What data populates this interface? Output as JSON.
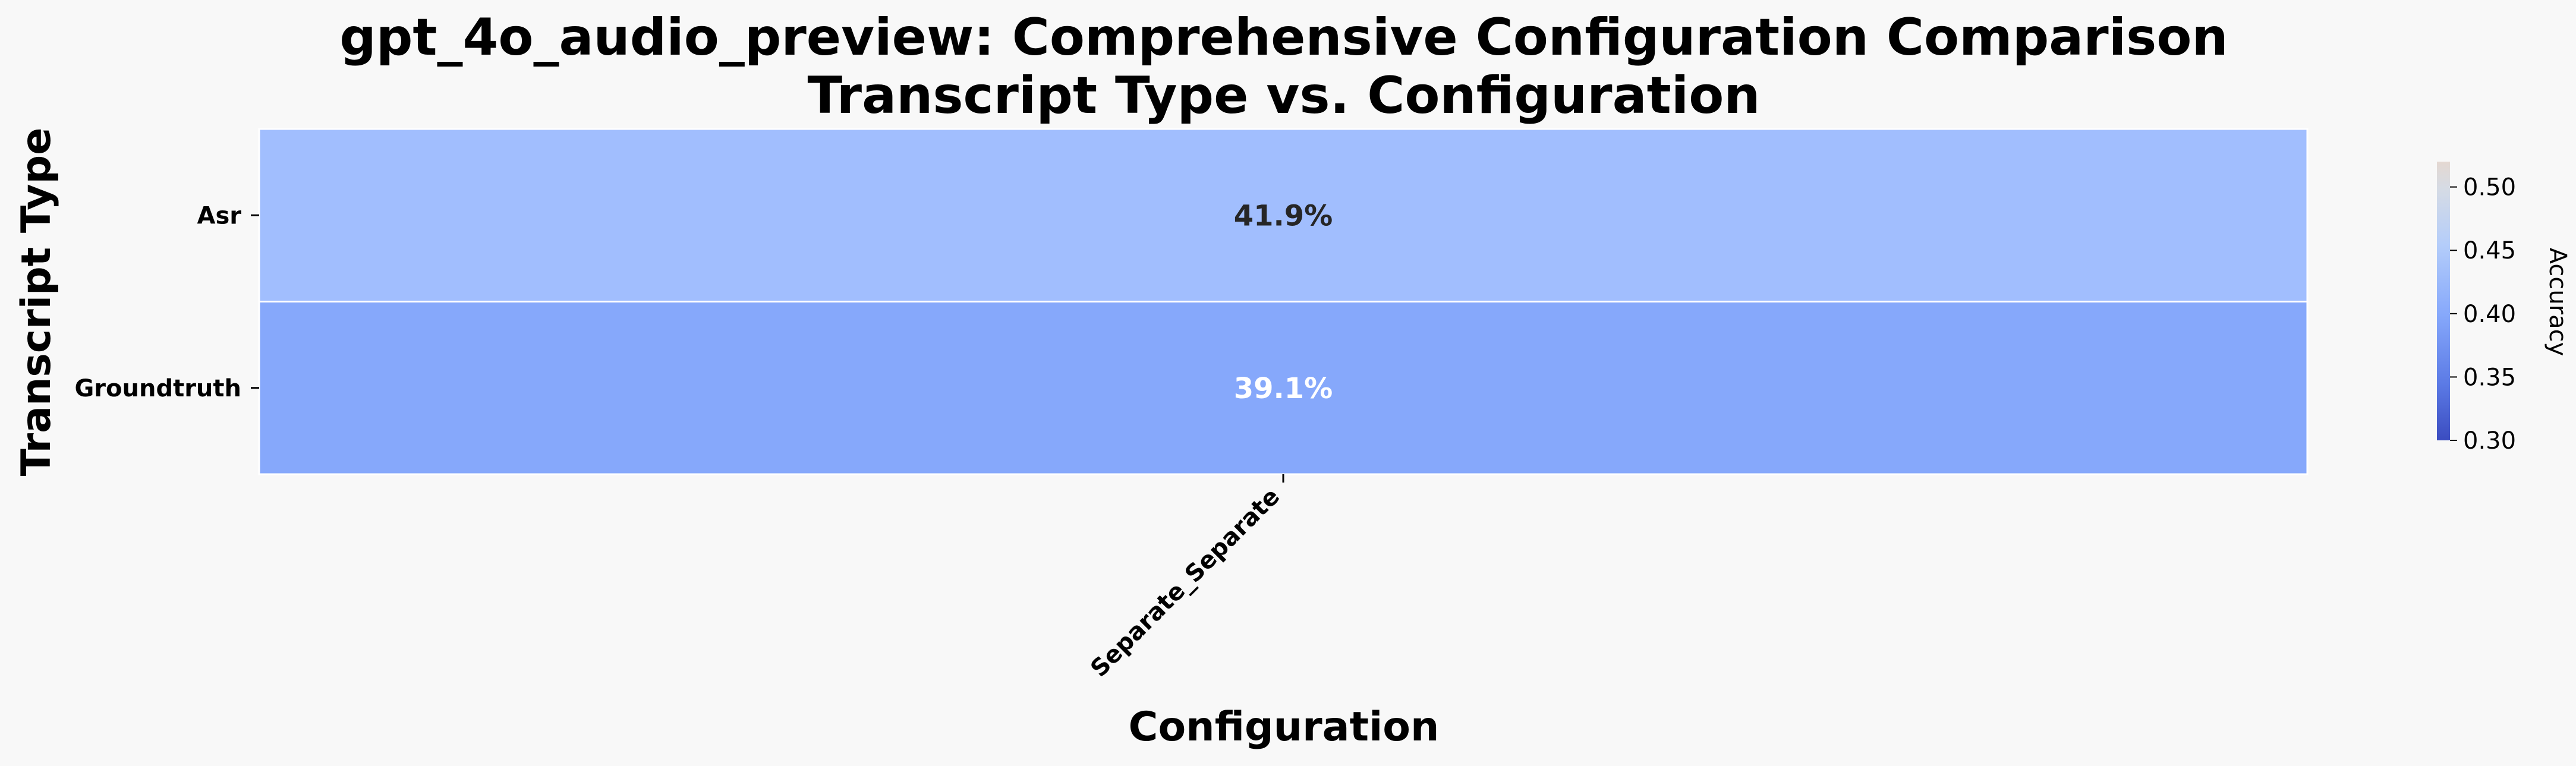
{
  "chart_data": {
    "type": "heatmap",
    "title": "gpt_4o_audio_preview: Comprehensive Configuration Comparison",
    "subtitle": "Transcript Type vs. Configuration",
    "xlabel": "Configuration",
    "ylabel": "Transcript Type",
    "x_categories": [
      "Separate_Separate"
    ],
    "y_categories": [
      "Asr",
      "Groundtruth"
    ],
    "values": [
      [
        0.419
      ],
      [
        0.391
      ]
    ],
    "cell_labels": [
      [
        "41.9%"
      ],
      [
        "39.1%"
      ]
    ],
    "cell_colors": [
      [
        "#a1befe"
      ],
      [
        "#86a8fb"
      ]
    ],
    "cell_text_colors": [
      [
        "#262626"
      ],
      [
        "#ffffff"
      ]
    ],
    "colormap": "coolwarm",
    "colorbar": {
      "label": "Accuracy",
      "range": [
        0.3,
        0.52
      ],
      "ticks": [
        0.3,
        0.35,
        0.4,
        0.45,
        0.5
      ],
      "tick_labels": [
        "0.30",
        "0.35",
        "0.40",
        "0.45",
        "0.50"
      ]
    },
    "grid": false
  }
}
